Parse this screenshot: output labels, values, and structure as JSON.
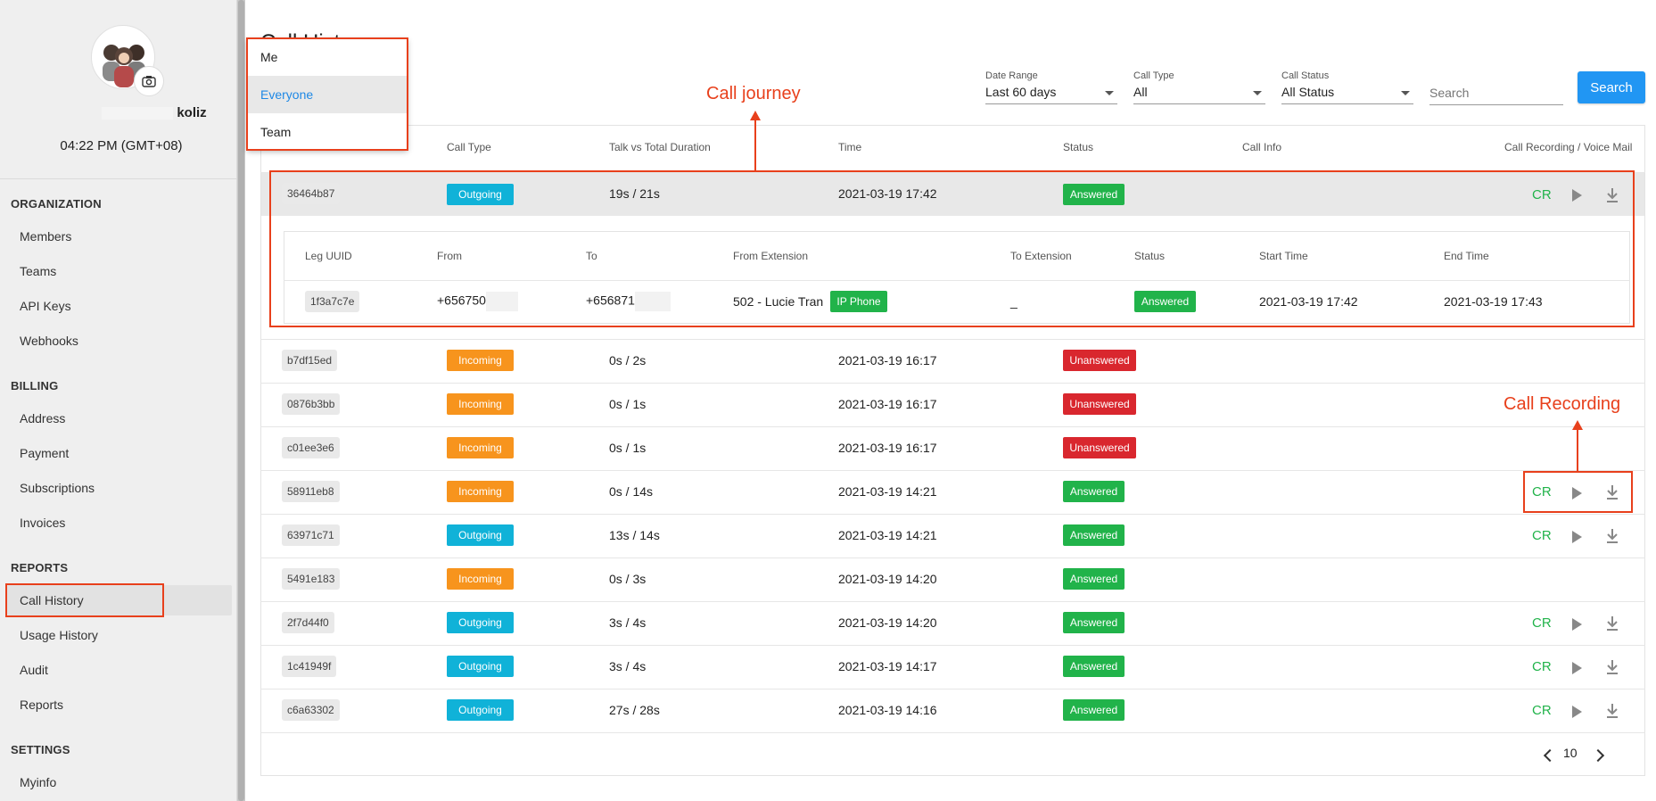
{
  "user": {
    "name": "koliz",
    "time": "04:22 PM (GMT+08)"
  },
  "sidebar": {
    "sections": [
      {
        "title": "ORGANIZATION",
        "items": [
          "Members",
          "Teams",
          "API Keys",
          "Webhooks"
        ]
      },
      {
        "title": "BILLING",
        "items": [
          "Address",
          "Payment",
          "Subscriptions",
          "Invoices"
        ]
      },
      {
        "title": "REPORTS",
        "items": [
          "Call History",
          "Usage History",
          "Audit",
          "Reports"
        ]
      },
      {
        "title": "SETTINGS",
        "items": [
          "Myinfo"
        ]
      }
    ],
    "active": "Call History"
  },
  "page": {
    "title": "Call History"
  },
  "scope_menu": {
    "items": [
      "Me",
      "Everyone",
      "Team"
    ],
    "selected": "Everyone"
  },
  "filters": {
    "date_range": {
      "label": "Date Range",
      "value": "Last 60 days"
    },
    "call_type": {
      "label": "Call Type",
      "value": "All"
    },
    "call_status": {
      "label": "Call Status",
      "value": "All Status"
    },
    "search_placeholder": "Search",
    "search_button": "Search"
  },
  "table": {
    "headers": [
      "Call Type",
      "Talk vs Total Duration",
      "Time",
      "Status",
      "Call Info",
      "Call Recording / Voice Mail"
    ],
    "rows": [
      {
        "uuid": "36464b87",
        "type": "Outgoing",
        "duration": "19s / 21s",
        "time": "2021-03-19 17:42",
        "status": "Answered",
        "recording": true
      },
      {
        "uuid": "b7df15ed",
        "type": "Incoming",
        "duration": "0s / 2s",
        "time": "2021-03-19 16:17",
        "status": "Unanswered",
        "recording": false
      },
      {
        "uuid": "0876b3bb",
        "type": "Incoming",
        "duration": "0s / 1s",
        "time": "2021-03-19 16:17",
        "status": "Unanswered",
        "recording": false
      },
      {
        "uuid": "c01ee3e6",
        "type": "Incoming",
        "duration": "0s / 1s",
        "time": "2021-03-19 16:17",
        "status": "Unanswered",
        "recording": false
      },
      {
        "uuid": "58911eb8",
        "type": "Incoming",
        "duration": "0s / 14s",
        "time": "2021-03-19 14:21",
        "status": "Answered",
        "recording": true
      },
      {
        "uuid": "63971c71",
        "type": "Outgoing",
        "duration": "13s / 14s",
        "time": "2021-03-19 14:21",
        "status": "Answered",
        "recording": true
      },
      {
        "uuid": "5491e183",
        "type": "Incoming",
        "duration": "0s / 3s",
        "time": "2021-03-19 14:20",
        "status": "Answered",
        "recording": false
      },
      {
        "uuid": "2f7d44f0",
        "type": "Outgoing",
        "duration": "3s / 4s",
        "time": "2021-03-19 14:20",
        "status": "Answered",
        "recording": true
      },
      {
        "uuid": "1c41949f",
        "type": "Outgoing",
        "duration": "3s / 4s",
        "time": "2021-03-19 14:17",
        "status": "Answered",
        "recording": true
      },
      {
        "uuid": "c6a63302",
        "type": "Outgoing",
        "duration": "27s / 28s",
        "time": "2021-03-19 14:16",
        "status": "Answered",
        "recording": true
      }
    ],
    "cr_label": "CR"
  },
  "leg_table": {
    "headers": [
      "Leg UUID",
      "From",
      "To",
      "From Extension",
      "To Extension",
      "Status",
      "Start Time",
      "End Time"
    ],
    "row": {
      "uuid": "1f3a7c7e",
      "from": "+656750",
      "to": "+656871",
      "from_ext": "502 - Lucie Tran",
      "from_ext_badge": "IP Phone",
      "to_ext": "_",
      "status": "Answered",
      "start": "2021-03-19 17:42",
      "end": "2021-03-19 17:43"
    }
  },
  "pagination": {
    "page_size": "10"
  },
  "annotations": {
    "call_journey": "Call journey",
    "call_recording": "Call Recording"
  },
  "colors": {
    "accent": "#2196f3",
    "outgoing": "#10b2d8",
    "incoming": "#f7941d",
    "answered": "#21b34a",
    "unanswered": "#d9272e",
    "annotation": "#e8401c"
  }
}
